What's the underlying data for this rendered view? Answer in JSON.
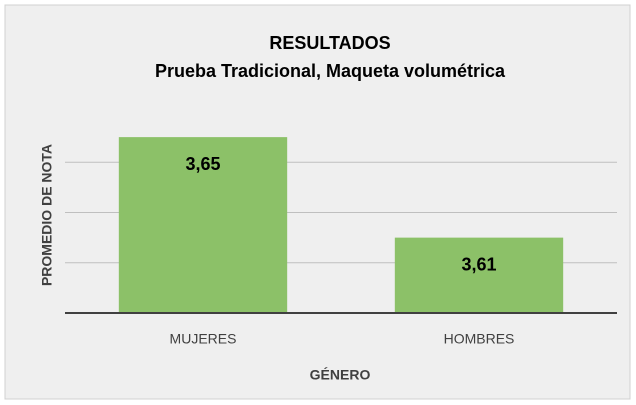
{
  "chart_data": {
    "type": "bar",
    "title": "RESULTADOS",
    "subtitle": "Prueba Tradicional, Maqueta volumétrica",
    "x_label": "GÉNERO",
    "y_label": "PROMEDIO DE NOTA",
    "categories": [
      "MUJERES",
      "HOMBRES"
    ],
    "values": [
      3.65,
      3.61
    ],
    "value_labels": [
      "3,65",
      "3,61"
    ],
    "color": "#8cc168",
    "ylim": [
      3.58,
      3.66
    ],
    "yticks": [
      3.58,
      3.6,
      3.62,
      3.64
    ],
    "grid": true
  }
}
